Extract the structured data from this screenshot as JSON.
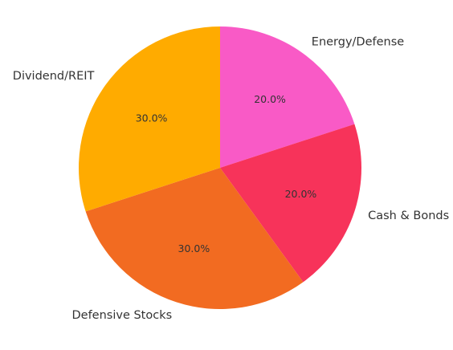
{
  "chart_data": {
    "type": "pie",
    "title": "",
    "slices": [
      {
        "label": "Energy/Defense",
        "value": 20.0,
        "percent_label": "20.0%",
        "color": "#f95ac6"
      },
      {
        "label": "Cash & Bonds",
        "value": 20.0,
        "percent_label": "20.0%",
        "color": "#f7335a"
      },
      {
        "label": "Defensive Stocks",
        "value": 30.0,
        "percent_label": "30.0%",
        "color": "#f26b21"
      },
      {
        "label": "Dividend/REIT",
        "value": 30.0,
        "percent_label": "30.0%",
        "color": "#ffab00"
      }
    ],
    "start_angle": "top",
    "direction": "clockwise",
    "legend": "none"
  }
}
